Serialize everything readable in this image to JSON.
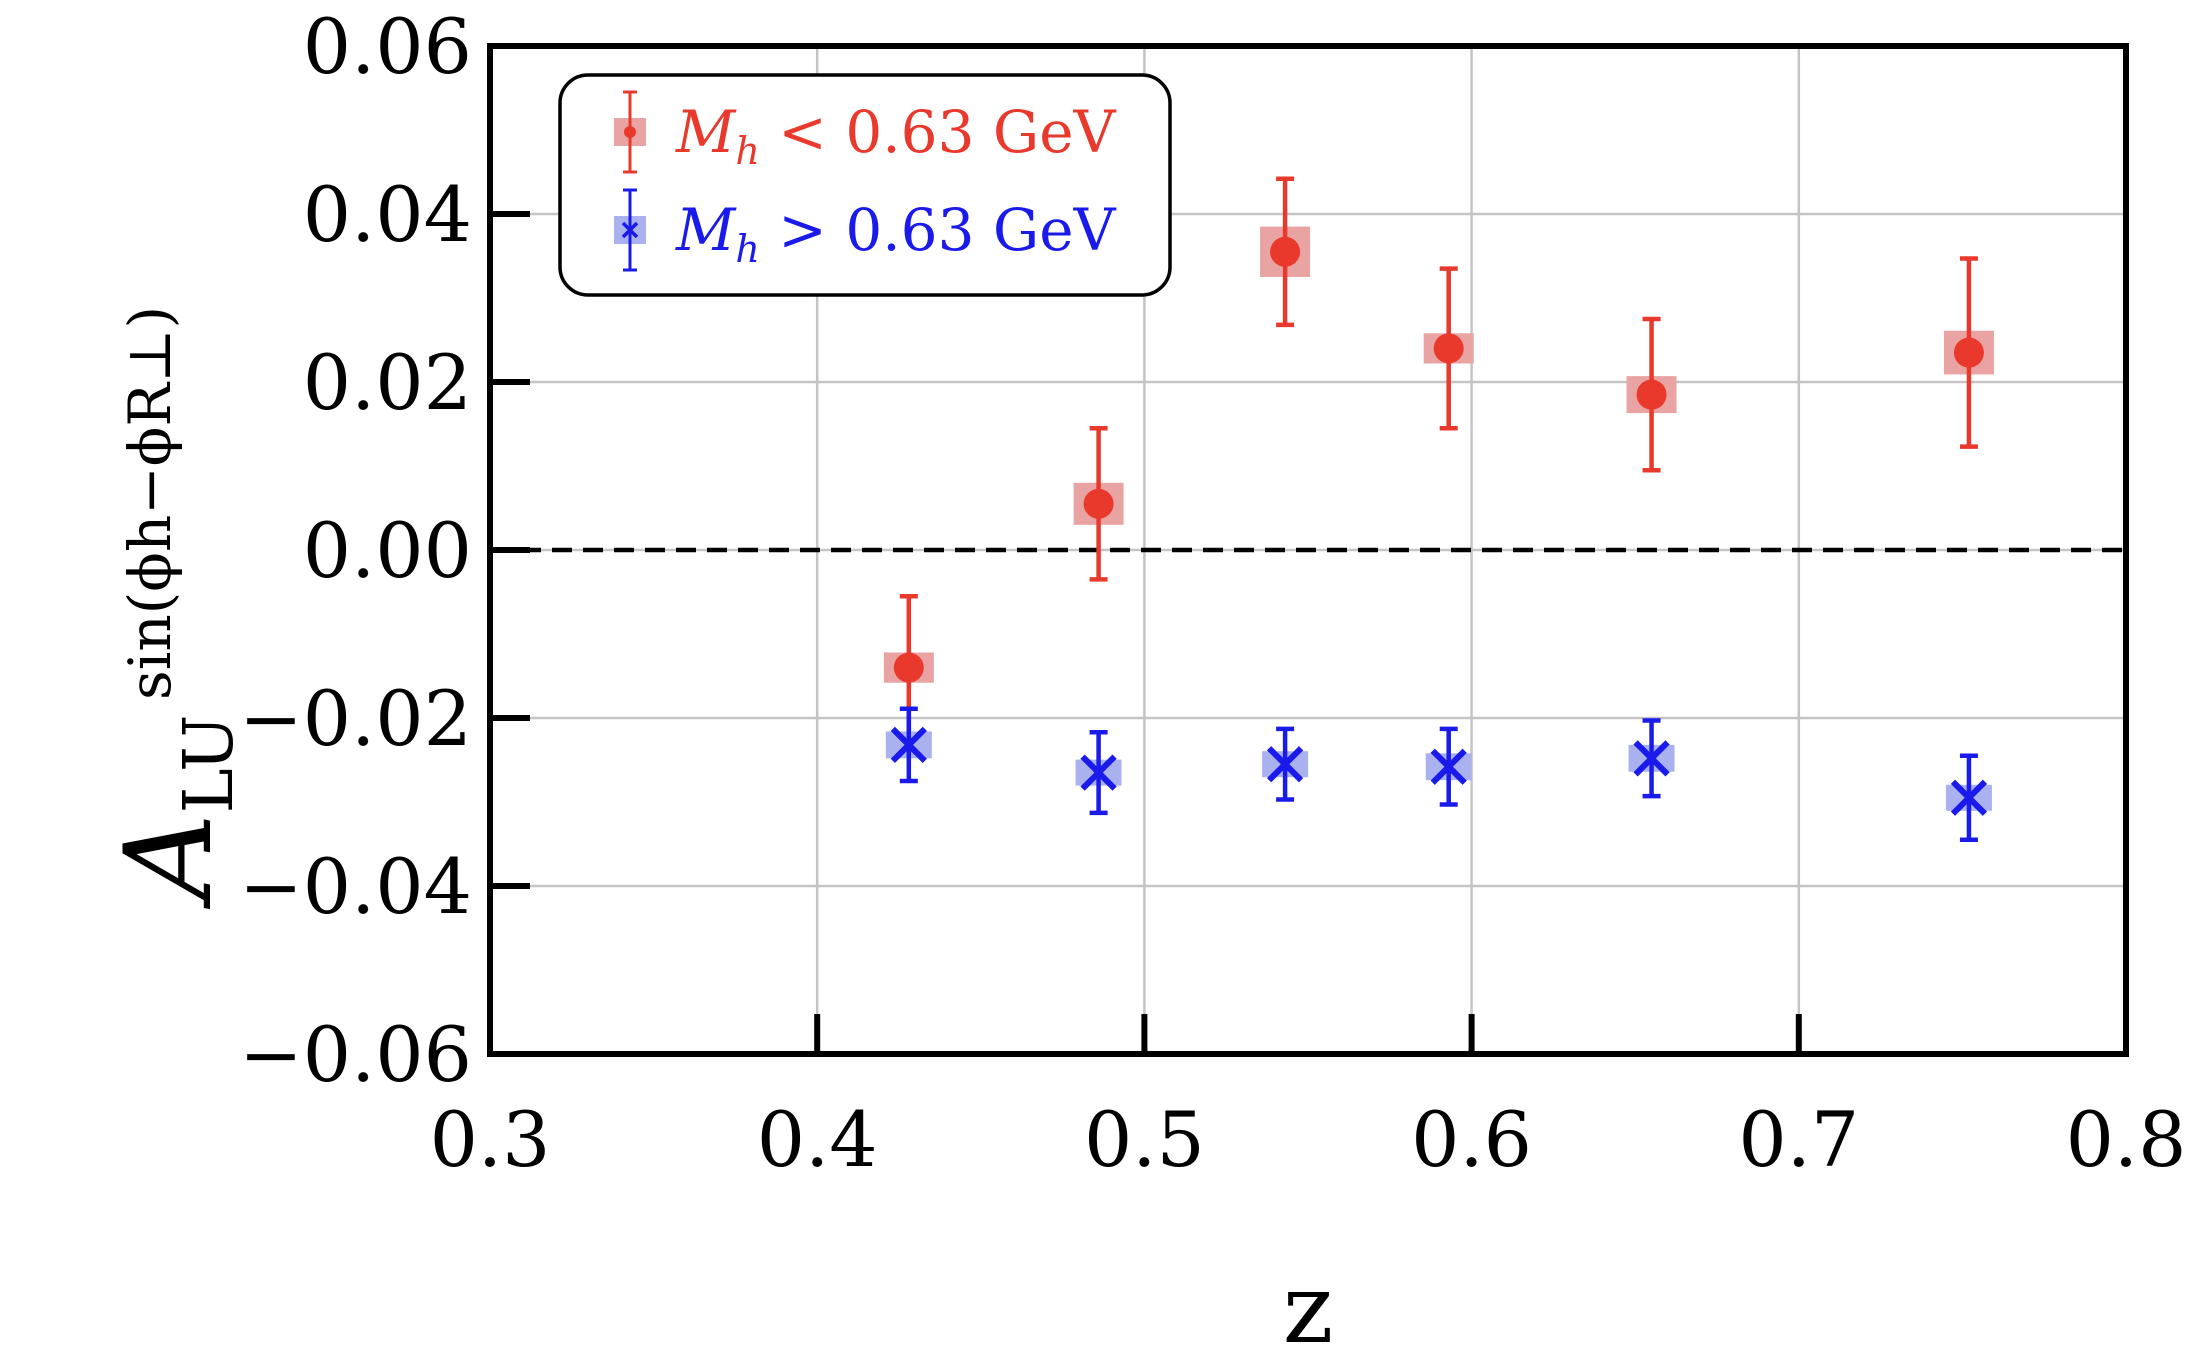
{
  "chart_data": {
    "type": "scatter",
    "title": "",
    "xlabel": "z",
    "ylabel": {
      "main": "A",
      "subscript": "LU",
      "superscript": "sin(ϕh−ϕR⊥)"
    },
    "xlim": [
      0.3,
      0.8
    ],
    "ylim": [
      -0.06,
      0.06
    ],
    "xticks": [
      0.3,
      0.4,
      0.5,
      0.6,
      0.7,
      0.8
    ],
    "xtick_labels": [
      "0.3",
      "0.4",
      "0.5",
      "0.6",
      "0.7",
      "0.8"
    ],
    "yticks": [
      0.06,
      0.04,
      0.02,
      0.0,
      -0.02,
      -0.04,
      -0.06
    ],
    "ytick_labels": [
      "0.06",
      "0.04",
      "0.02",
      "0.00",
      "−0.02",
      "−0.04",
      "−0.06"
    ],
    "grid": true,
    "reference_line": {
      "y": 0.0,
      "style": "dashed",
      "color": "#000000"
    },
    "legend": {
      "position": "top-left",
      "entries": [
        {
          "label_var": "M",
          "label_sub": "h",
          "label_rest": " < 0.63 GeV",
          "color": "#e8392c"
        },
        {
          "label_var": "M",
          "label_sub": "h",
          "label_rest": " > 0.63 GeV",
          "color": "#1a1aeb"
        }
      ]
    },
    "series": [
      {
        "name": "Mh < 0.63 GeV",
        "marker": "circle",
        "color": "#e8392c",
        "syst_color": "#eaa3a3",
        "x": [
          0.428,
          0.486,
          0.543,
          0.593,
          0.655,
          0.752
        ],
        "y": [
          -0.014,
          0.0055,
          0.0355,
          0.024,
          0.0185,
          0.0235
        ],
        "stat_err": [
          0.0085,
          0.009,
          0.0087,
          0.0095,
          0.009,
          0.0112
        ],
        "syst_err": [
          0.0018,
          0.0025,
          0.003,
          0.0018,
          0.0022,
          0.0026
        ]
      },
      {
        "name": "Mh > 0.63 GeV",
        "marker": "x",
        "color": "#1a1aeb",
        "syst_color": "#aab1ef",
        "x": [
          0.428,
          0.486,
          0.543,
          0.593,
          0.655,
          0.752
        ],
        "y": [
          -0.0232,
          -0.0265,
          -0.0255,
          -0.0258,
          -0.0248,
          -0.0295
        ],
        "stat_err": [
          0.0043,
          0.0048,
          0.0042,
          0.0045,
          0.0045,
          0.005
        ],
        "syst_err": [
          0.0016,
          0.0015,
          0.0015,
          0.0016,
          0.0016,
          0.0015
        ]
      }
    ]
  }
}
